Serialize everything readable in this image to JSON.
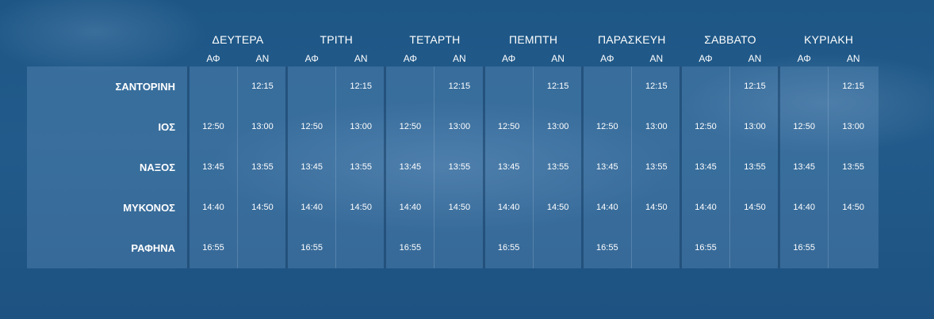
{
  "schedule": {
    "days": [
      {
        "name": "ΔΕΥΤΕΡΑ"
      },
      {
        "name": "ΤΡΙΤΗ"
      },
      {
        "name": "ΤΕΤΑΡΤΗ"
      },
      {
        "name": "ΠΕΜΠΤΗ"
      },
      {
        "name": "ΠΑΡΑΣΚΕΥΗ"
      },
      {
        "name": "ΣΑΒΒΑΤΟ"
      },
      {
        "name": "ΚΥΡΙΑΚΗ"
      }
    ],
    "departure_label": "ΑΦ",
    "arrival_label": "ΑΝ",
    "ports": [
      {
        "name": "ΣΑΝΤΟΡΙΝΗ",
        "dep": "",
        "arr": "12:15"
      },
      {
        "name": "ΙΟΣ",
        "dep": "12:50",
        "arr": "13:00"
      },
      {
        "name": "ΝΑΞΟΣ",
        "dep": "13:45",
        "arr": "13:55"
      },
      {
        "name": "ΜΥΚΟΝΟΣ",
        "dep": "14:40",
        "arr": "14:50"
      },
      {
        "name": "ΡΑΦΗΝΑ",
        "dep": "16:55",
        "arr": ""
      }
    ]
  }
}
